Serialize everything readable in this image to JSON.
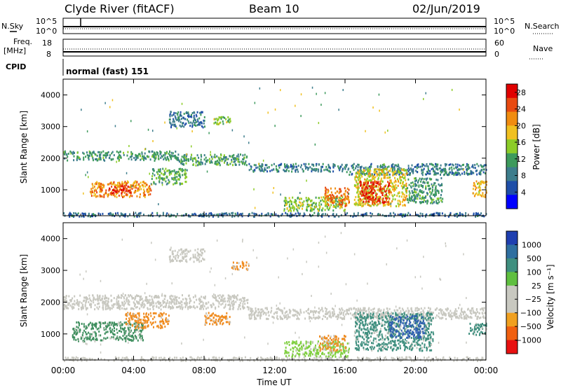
{
  "header": {
    "station": "Clyde River (fitACF)",
    "beam": "Beam 10",
    "date": "02/Jun/2019"
  },
  "top_panels": {
    "nsky_label": "N.Sky",
    "nsky_ticks": [
      "10^5",
      "10^0"
    ],
    "nsearch_label": "N.Search",
    "nsearch_ticks": [
      "10^5",
      "10^0"
    ],
    "freq_label_1": "Freq.",
    "freq_label_2": "[MHz]",
    "freq_ticks": [
      "18",
      "8"
    ],
    "nave_label": "Nave",
    "nave_ticks": [
      "60",
      "0"
    ],
    "cpid_label": "CPID",
    "cpid_value": "normal (fast) 151"
  },
  "colors": {
    "power_scale": [
      "#0000ff",
      "#1f4fa8",
      "#3d7d8c",
      "#3d9a5c",
      "#8ccc28",
      "#f0c020",
      "#f08c10",
      "#e84a10",
      "#e00000"
    ],
    "velocity_scale": [
      "#1f3fb0",
      "#2f6fa0",
      "#3f8f7f",
      "#5fbf3f",
      "#c8c8c0",
      "#c8c8c0",
      "#f0a020",
      "#f06010",
      "#e81010"
    ],
    "scatter_grey": "#c8c8c0"
  },
  "chart_data": [
    {
      "type": "heatmap",
      "panel": "power",
      "xlabel": "Time UT",
      "ylabel": "Slant Range [km]",
      "x_ticks": [
        "00:00",
        "04:00",
        "08:00",
        "12:00",
        "16:00",
        "20:00",
        "00:00"
      ],
      "y_ticks": [
        "1000",
        "2000",
        "3000",
        "4000"
      ],
      "xlim_hours": [
        0,
        24
      ],
      "ylim_km": [
        180,
        4500
      ],
      "colorbar": {
        "label": "Power [dB]",
        "ticks": [
          "4",
          "8",
          "12",
          "16",
          "20",
          "24",
          "28"
        ],
        "range": [
          0,
          30
        ]
      },
      "regions": [
        {
          "t0": 0.0,
          "t1": 6.5,
          "r0": 1950,
          "r1": 2250,
          "level": 10
        },
        {
          "t0": 6.5,
          "t1": 10.5,
          "r0": 1800,
          "r1": 2150,
          "level": 11
        },
        {
          "t0": 10.5,
          "t1": 16.0,
          "r0": 1600,
          "r1": 1850,
          "level": 8
        },
        {
          "t0": 16.0,
          "t1": 24.0,
          "r0": 1500,
          "r1": 1850,
          "level": 8
        },
        {
          "t0": 1.5,
          "t1": 5.0,
          "r0": 800,
          "r1": 1300,
          "level": 22
        },
        {
          "t0": 2.5,
          "t1": 3.8,
          "r0": 900,
          "r1": 1150,
          "level": 28
        },
        {
          "t0": 5.0,
          "t1": 7.0,
          "r0": 1200,
          "r1": 1700,
          "level": 12
        },
        {
          "t0": 6.0,
          "t1": 8.0,
          "r0": 3000,
          "r1": 3500,
          "level": 7
        },
        {
          "t0": 8.5,
          "t1": 9.5,
          "r0": 3100,
          "r1": 3350,
          "level": 15
        },
        {
          "t0": 12.5,
          "t1": 16.0,
          "r0": 350,
          "r1": 800,
          "level": 14
        },
        {
          "t0": 14.8,
          "t1": 16.2,
          "r0": 500,
          "r1": 1100,
          "level": 24
        },
        {
          "t0": 16.5,
          "t1": 19.5,
          "r0": 500,
          "r1": 1700,
          "level": 18
        },
        {
          "t0": 16.8,
          "t1": 18.5,
          "r0": 600,
          "r1": 1300,
          "level": 28
        },
        {
          "t0": 19.5,
          "t1": 21.5,
          "r0": 600,
          "r1": 1400,
          "level": 10
        },
        {
          "t0": 23.2,
          "t1": 24.0,
          "r0": 800,
          "r1": 1300,
          "level": 20
        },
        {
          "t0": 0.0,
          "t1": 24.0,
          "r0": 180,
          "r1": 300,
          "level": 6
        }
      ]
    },
    {
      "type": "heatmap",
      "panel": "velocity",
      "xlabel": "Time UT",
      "ylabel": "Slant Range [km]",
      "x_ticks": [
        "00:00",
        "04:00",
        "08:00",
        "12:00",
        "16:00",
        "20:00",
        "00:00"
      ],
      "y_ticks": [
        "1000",
        "2000",
        "3000",
        "4000"
      ],
      "xlim_hours": [
        0,
        24
      ],
      "ylim_km": [
        180,
        4500
      ],
      "colorbar": {
        "label": "Velocity [m s⁻¹]",
        "ticks": [
          "1000",
          "500",
          "100",
          "25",
          "−25",
          "−100",
          "−500",
          "−1000"
        ],
        "range": [
          -1000,
          1000
        ]
      },
      "regions": [
        {
          "t0": 0.0,
          "t1": 10.5,
          "r0": 1800,
          "r1": 2250,
          "class": "grey"
        },
        {
          "t0": 10.5,
          "t1": 24.0,
          "r0": 1500,
          "r1": 1850,
          "class": "grey"
        },
        {
          "t0": 6.0,
          "t1": 8.0,
          "r0": 3300,
          "r1": 3700,
          "class": "grey"
        },
        {
          "t0": 0.5,
          "t1": 4.5,
          "r0": 800,
          "r1": 1400,
          "class": "green"
        },
        {
          "t0": 3.5,
          "t1": 6.0,
          "r0": 1200,
          "r1": 1700,
          "class": "orange"
        },
        {
          "t0": 8.0,
          "t1": 9.5,
          "r0": 1300,
          "r1": 1700,
          "class": "orange"
        },
        {
          "t0": 9.5,
          "t1": 10.5,
          "r0": 3050,
          "r1": 3300,
          "class": "orange"
        },
        {
          "t0": 12.5,
          "t1": 16.2,
          "r0": 300,
          "r1": 800,
          "class": "lightgreen"
        },
        {
          "t0": 14.5,
          "t1": 16.0,
          "r0": 500,
          "r1": 1000,
          "class": "orange"
        },
        {
          "t0": 16.5,
          "t1": 21.0,
          "r0": 500,
          "r1": 1700,
          "class": "teal"
        },
        {
          "t0": 18.5,
          "t1": 20.5,
          "r0": 900,
          "r1": 1600,
          "class": "blue"
        },
        {
          "t0": 23.0,
          "t1": 24.0,
          "r0": 1000,
          "r1": 1400,
          "class": "teal"
        },
        {
          "t0": 0.0,
          "t1": 24.0,
          "r0": 180,
          "r1": 300,
          "class": "grey"
        }
      ]
    }
  ]
}
